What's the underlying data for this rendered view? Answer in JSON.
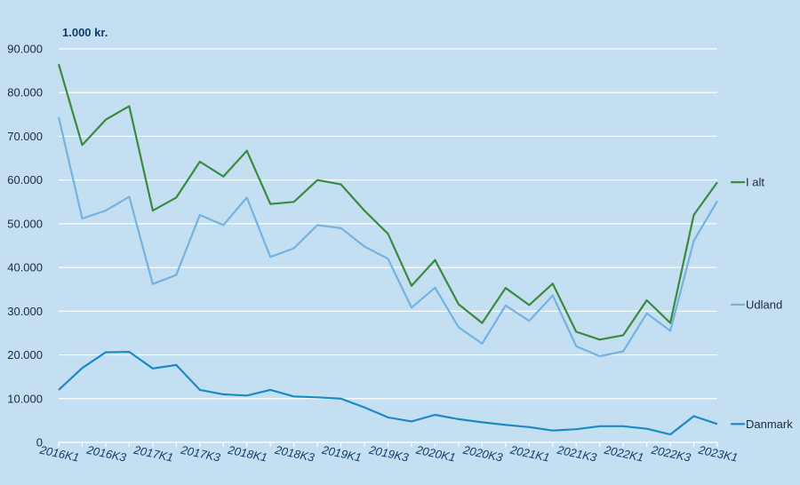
{
  "chart_data": {
    "type": "line",
    "unit_label": "1.000 kr.",
    "ylim": [
      0,
      90000
    ],
    "y_ticks": [
      0,
      10000,
      20000,
      30000,
      40000,
      50000,
      60000,
      70000,
      80000,
      90000
    ],
    "y_tick_labels": [
      "0",
      "10.000",
      "20.000",
      "30.000",
      "40.000",
      "50.000",
      "60.000",
      "70.000",
      "80.000",
      "90.000"
    ],
    "grid": true,
    "legend_position": "right, at line ends",
    "x": [
      "2016K1",
      "2016K2",
      "2016K3",
      "2016K4",
      "2017K1",
      "2017K2",
      "2017K3",
      "2017K4",
      "2018K1",
      "2018K2",
      "2018K3",
      "2018K4",
      "2019K1",
      "2019K2",
      "2019K3",
      "2019K4",
      "2020K1",
      "2020K2",
      "2020K3",
      "2020K4",
      "2021K1",
      "2021K2",
      "2021K3",
      "2021K4",
      "2022K1",
      "2022K2",
      "2022K3",
      "2022K4",
      "2023K1"
    ],
    "x_tick_labels": [
      "2016K1",
      "2016K3",
      "2017K1",
      "2017K3",
      "2018K1",
      "2018K3",
      "2019K1",
      "2019K3",
      "2020K1",
      "2020K3",
      "2021K1",
      "2021K3",
      "2022K1",
      "2022K3",
      "2023K1"
    ],
    "series": [
      {
        "name": "I alt",
        "color": "#3a8a3e",
        "values": [
          86500,
          68000,
          73800,
          76900,
          53000,
          56000,
          64200,
          60800,
          66700,
          54500,
          55000,
          60000,
          59000,
          53000,
          47700,
          35800,
          41700,
          31600,
          27300,
          35300,
          31400,
          36300,
          25300,
          23500,
          24500,
          32500,
          27300,
          52000,
          59500
        ]
      },
      {
        "name": "Udland",
        "color": "#74b2e0",
        "values": [
          74400,
          51200,
          53000,
          56200,
          36200,
          38300,
          52000,
          49700,
          56000,
          42400,
          44400,
          49700,
          49000,
          44800,
          42000,
          30800,
          35400,
          26300,
          22600,
          31300,
          27800,
          33600,
          22000,
          19700,
          20800,
          29500,
          25500,
          46100,
          55200
        ]
      },
      {
        "name": "Danmark",
        "color": "#1a8ac6",
        "values": [
          12000,
          17000,
          20600,
          20700,
          16900,
          17700,
          12000,
          11000,
          10700,
          12000,
          10500,
          10300,
          10000,
          8000,
          5700,
          4800,
          6300,
          5300,
          4600,
          4000,
          3500,
          2700,
          3000,
          3700,
          3700,
          3100,
          1800,
          6000,
          4200
        ]
      }
    ]
  }
}
